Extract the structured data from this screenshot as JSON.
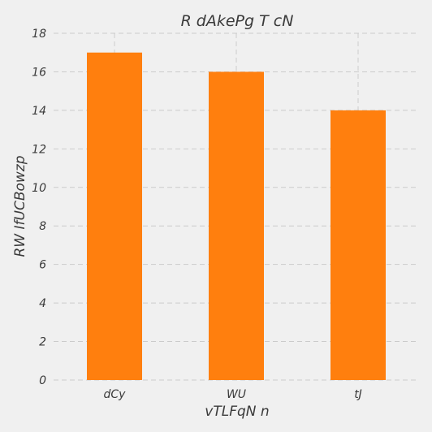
{
  "chart_data": {
    "type": "bar",
    "title": "R dAkePg T cN",
    "xlabel": "vTLFqN n",
    "ylabel": "RW  IfUCBowzp",
    "categories": [
      "dCy",
      "WU",
      "tJ"
    ],
    "values": [
      17,
      16,
      14
    ],
    "ylim": [
      0,
      18
    ],
    "yticks": [
      0,
      2,
      4,
      6,
      8,
      10,
      12,
      14,
      16,
      18
    ],
    "grid": true,
    "colors": {
      "bar": "#ff7f0e",
      "background": "#f0f0f0",
      "grid": "#cbcbcb"
    }
  }
}
